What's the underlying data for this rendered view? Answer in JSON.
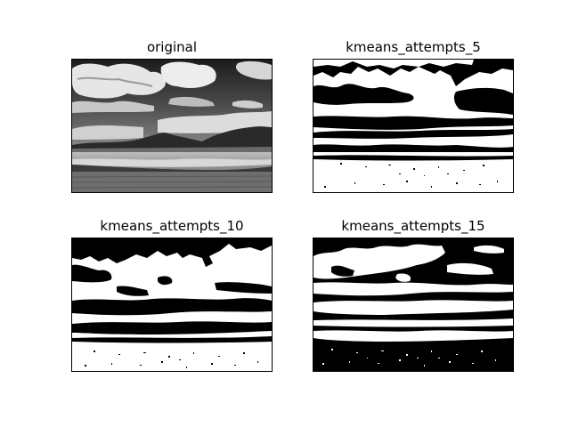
{
  "figure": {
    "panels": [
      {
        "title": "original"
      },
      {
        "title": "kmeans_attempts_5"
      },
      {
        "title": "kmeans_attempts_10"
      },
      {
        "title": "kmeans_attempts_15"
      }
    ]
  }
}
